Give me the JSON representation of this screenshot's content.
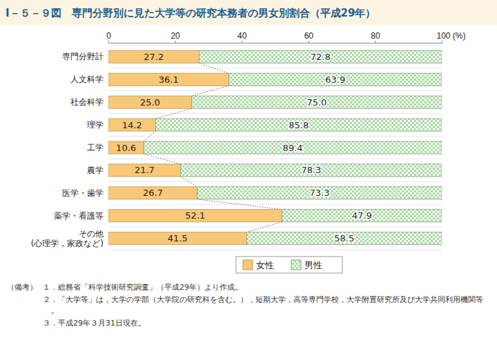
{
  "chart_data": {
    "type": "bar",
    "orientation": "horizontal",
    "stacked": true,
    "data_labels": true,
    "grid": false,
    "title": "Ⅰ－５－９図　専門分野別に見た大学等の研究本務者の男女別割合（平成29年）",
    "categories": [
      "専門分野計",
      "人文科学",
      "社会科学",
      "理学",
      "工学",
      "農学",
      "医学・歯学",
      "薬学・看護等",
      "その他\n(心理学，家政など)"
    ],
    "series": [
      {
        "name": "女性",
        "color": "#f8c878",
        "values": [
          27.2,
          36.1,
          25.0,
          14.2,
          10.6,
          21.7,
          26.7,
          52.1,
          41.5
        ],
        "value_labels": [
          "27.2",
          "36.1",
          "25.0",
          "14.2",
          "10.6",
          "21.7",
          "26.7",
          "52.1",
          "41.5"
        ]
      },
      {
        "name": "男性",
        "color": "#a6d9a0",
        "values": [
          72.8,
          63.9,
          75.0,
          85.8,
          89.4,
          78.3,
          73.3,
          47.9,
          58.5
        ],
        "value_labels": [
          "72.8",
          "63.9",
          "75.0",
          "85.8",
          "89.4",
          "78.3",
          "73.3",
          "47.9",
          "58.5"
        ]
      }
    ],
    "xlim": [
      0,
      100
    ],
    "xticks": [
      0,
      20,
      40,
      60,
      80,
      {
        "value": 100,
        "label": "100 (%)"
      }
    ],
    "legend": "bottom",
    "notes_label": "（備考）",
    "notes": [
      "１．総務省「科学技術研究調査」（平成29年）より作成。",
      "２．「大学等」は，大学の学部（大学院の研究科を含む。），短期大学，高等専門学校，大学附置研究所及び大学共同利用機関等。",
      "３．平成29年３月31日現在。"
    ]
  }
}
